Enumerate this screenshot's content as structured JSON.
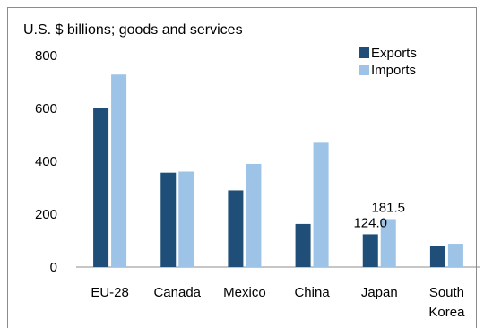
{
  "chart_data": {
    "type": "bar",
    "title": "U.S. $ billions; goods and services",
    "xlabel": "",
    "ylabel": "",
    "ylim": [
      0,
      800
    ],
    "yticks": [
      0,
      200,
      400,
      600,
      800
    ],
    "grid": false,
    "legend_position": "top-right",
    "categories": [
      [
        "EU-28"
      ],
      [
        "Canada"
      ],
      [
        "Mexico"
      ],
      [
        "China"
      ],
      [
        "Japan"
      ],
      [
        "South",
        "Korea"
      ]
    ],
    "series": [
      {
        "name": "Exports",
        "color": "#1f4e79",
        "values": [
          603,
          357,
          290,
          163,
          124.0,
          79
        ]
      },
      {
        "name": "Imports",
        "color": "#9dc3e6",
        "values": [
          728,
          361,
          390,
          470,
          181.5,
          88
        ]
      }
    ],
    "data_labels": [
      {
        "series": 0,
        "category": 4,
        "text": "124.0"
      },
      {
        "series": 1,
        "category": 4,
        "text": "181.5"
      }
    ]
  }
}
